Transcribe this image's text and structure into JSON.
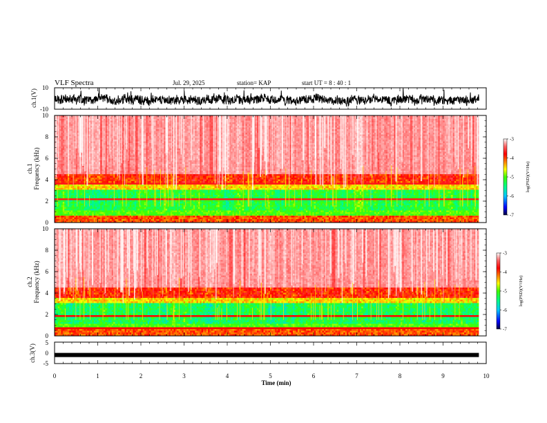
{
  "header": {
    "title": "VLF Spectra",
    "date": "Jul. 29, 2025",
    "station": "station= KAP",
    "start": "start UT = 8 : 40 : 1"
  },
  "chart_data": [
    {
      "id": "ch1-waveform",
      "type": "line",
      "ylabel": "ch.1(V)",
      "ylim": [
        -10,
        10
      ],
      "yticks": [
        "10",
        "-10"
      ],
      "x_range_min": [
        0,
        9.83
      ],
      "description_values": "noisy broadband voltage fluctuating mostly between about -8 V and +6 V"
    },
    {
      "id": "ch1-spectrogram",
      "type": "heatmap",
      "ylabel": "ch.1\nFrequency (kHz)",
      "ylabel_lines": [
        "ch.1",
        "Frequency (kHz)"
      ],
      "ylim": [
        0,
        10
      ],
      "yticks": [
        "0",
        "2",
        "4",
        "6",
        "8",
        "10"
      ],
      "xlim": [
        0,
        10
      ],
      "colorbar": {
        "label": "log(PSD)(V²/Hz)",
        "range": [
          -7,
          -3
        ],
        "ticks": [
          "-3",
          "-4",
          "-5",
          "-6",
          "-7"
        ],
        "colors": [
          "#000050",
          "#0000ff",
          "#00c8ff",
          "#00ff80",
          "#40ff00",
          "#ffff00",
          "#ff8000",
          "#ff0000",
          "#ff6060",
          "#ffffff"
        ]
      }
    },
    {
      "id": "ch2-spectrogram",
      "type": "heatmap",
      "ylabel": "ch.2\nFrequency (kHz)",
      "ylabel_lines": [
        "ch.2",
        "Frequency (kHz)"
      ],
      "ylim": [
        0,
        10
      ],
      "yticks": [
        "0",
        "2",
        "4",
        "6",
        "8",
        "10"
      ],
      "xlim": [
        0,
        10
      ],
      "colorbar": {
        "label": "log(PSD)(V²/Hz)",
        "range": [
          -7,
          -3
        ],
        "ticks": [
          "-3",
          "-4",
          "-5",
          "-6",
          "-7"
        ],
        "colors": [
          "#000050",
          "#0000ff",
          "#00c8ff",
          "#00ff80",
          "#40ff00",
          "#ffff00",
          "#ff8000",
          "#ff0000",
          "#ff6060",
          "#ffffff"
        ]
      }
    },
    {
      "id": "ch3-waveform",
      "type": "line",
      "ylabel": "ch.3(V)",
      "ylim": [
        -5,
        5
      ],
      "yticks": [
        "5",
        "0",
        "-5"
      ],
      "level_v": -1,
      "x_range_min": [
        0,
        9.83
      ]
    }
  ],
  "xaxis": {
    "label": "Time (min)",
    "ticks": [
      "0",
      "1",
      "2",
      "3",
      "4",
      "5",
      "6",
      "7",
      "8",
      "9",
      "10"
    ],
    "range": [
      0,
      10
    ]
  }
}
